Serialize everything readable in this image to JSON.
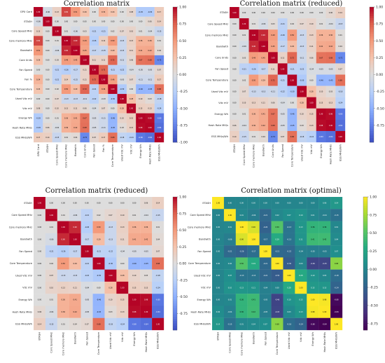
{
  "chart_data": [
    {
      "type": "heatmap",
      "title": "Correlation matrix",
      "colormap": "coolwarm",
      "vmin": -1,
      "vmax": 1,
      "colorbar_ticks": [
        "1.00",
        "0.75",
        "0.50",
        "0.25",
        "0.00",
        "-0.25",
        "-0.50",
        "-0.75",
        "-1.00"
      ],
      "labels": [
        "GPU Card",
        "ETASH",
        "Core Speed MHz",
        "Core memory MHz",
        "Bandwith",
        "Core Units",
        "Fan Speed",
        "Fan %",
        "Core Temperature",
        "Used Vdc mV",
        "Vdc mV",
        "Energy Wh",
        "Hash Rate MH/s",
        "ESS MH/s/Wh"
      ],
      "matrix": [
        [
          1.0,
          -0.06,
          0.13,
          0.82,
          0.51,
          0.26,
          -0.0,
          0.34,
          0.24,
          0.0,
          0.08,
          -0.29,
          -0.29,
          0.17
        ],
        [
          -0.06,
          1.0,
          0.0,
          -0.0,
          -0.0,
          -0.0,
          -0.0,
          -0.0,
          -0.0,
          -0.0,
          0.0,
          0.0,
          0.06,
          0.14
        ],
        [
          0.13,
          0.0,
          1.0,
          0.01,
          -0.06,
          0.03,
          -0.21,
          -0.21,
          0.02,
          0.07,
          0.1,
          0.01,
          -0.04,
          -0.15
        ],
        [
          0.82,
          -0.0,
          0.01,
          1.0,
          0.9,
          0.49,
          -0.26,
          0.14,
          0.5,
          -0.13,
          0.13,
          0.36,
          0.36,
          0.01
        ],
        [
          0.51,
          -0.0,
          -0.06,
          0.9,
          1.0,
          0.45,
          -0.17,
          -0.15,
          0.29,
          -0.13,
          0.11,
          0.41,
          0.42,
          0.04
        ],
        [
          0.26,
          -0.0,
          0.03,
          0.49,
          0.45,
          1.0,
          0.11,
          0.11,
          0.72,
          -0.11,
          0.06,
          0.67,
          0.68,
          -0.72
        ],
        [
          -0.0,
          -0.0,
          -0.21,
          -0.26,
          -0.17,
          0.11,
          1.0,
          0.72,
          -0.21,
          -0.22,
          -0.04,
          -0.05,
          -0.05,
          0.07
        ],
        [
          0.34,
          -0.0,
          -0.21,
          0.14,
          -0.15,
          0.11,
          0.72,
          1.0,
          0.46,
          -0.03,
          0.07,
          -0.11,
          -0.11,
          0.17
        ],
        [
          0.24,
          -0.0,
          0.02,
          0.5,
          0.29,
          0.72,
          -0.21,
          0.46,
          1.0,
          -0.3,
          0.0,
          -0.46,
          -0.45,
          0.68
        ],
        [
          0.0,
          -0.0,
          0.07,
          -0.13,
          -0.13,
          -0.11,
          -0.22,
          -0.03,
          -0.3,
          1.0,
          0.28,
          0.1,
          0.03,
          -0.18
        ],
        [
          0.08,
          0.0,
          0.1,
          0.13,
          0.11,
          0.06,
          -0.04,
          0.07,
          0.0,
          0.28,
          1.0,
          0.15,
          0.13,
          -0.24
        ],
        [
          -0.29,
          0.0,
          0.01,
          0.36,
          0.41,
          0.67,
          -0.05,
          -0.11,
          -0.46,
          0.1,
          0.15,
          1.0,
          0.98,
          -0.8
        ],
        [
          -0.29,
          0.06,
          -0.04,
          0.36,
          0.42,
          0.68,
          -0.05,
          -0.11,
          -0.45,
          0.03,
          0.13,
          0.98,
          1.0,
          -0.84
        ],
        [
          0.17,
          0.14,
          -0.15,
          0.01,
          0.04,
          -0.72,
          0.07,
          0.17,
          0.68,
          -0.18,
          -0.24,
          -0.8,
          -0.84,
          1.0
        ]
      ]
    },
    {
      "type": "heatmap",
      "title": "Correlation matrix (reduced)",
      "colormap": "coolwarm",
      "vmin": -1,
      "vmax": 1,
      "colorbar_ticks": [
        "1.00",
        "0.75",
        "0.50",
        "0.25",
        "0.00",
        "-0.25",
        "-0.50",
        "-0.75"
      ],
      "labels": [
        "ETASH",
        "Core Speed MHz",
        "Core memory MHz",
        "Bandwith",
        "Core Units",
        "Fan Speed",
        "Core Temperature",
        "Used Vdc mV",
        "Vdc mV",
        "Energy Wh",
        "Hash Rate MH/s",
        "ESS MH/s/Wh"
      ],
      "matrix": [
        [
          1.0,
          0.0,
          -0.0,
          -0.0,
          -0.0,
          -0.0,
          -0.0,
          -0.0,
          0.0,
          0.0,
          0.06,
          0.14
        ],
        [
          0.0,
          1.0,
          0.01,
          -0.06,
          0.03,
          -0.21,
          0.02,
          0.07,
          0.1,
          0.01,
          -0.04,
          -0.15
        ],
        [
          -0.0,
          0.01,
          1.0,
          0.9,
          0.49,
          -0.26,
          0.5,
          -0.13,
          0.13,
          0.36,
          0.36,
          0.01
        ],
        [
          -0.0,
          -0.06,
          0.9,
          1.0,
          0.45,
          -0.17,
          0.29,
          -0.13,
          0.11,
          0.41,
          0.42,
          0.04
        ],
        [
          -0.0,
          0.03,
          0.49,
          0.45,
          1.0,
          0.11,
          0.72,
          -0.11,
          0.06,
          0.67,
          0.68,
          -0.72
        ],
        [
          -0.0,
          -0.21,
          -0.26,
          -0.17,
          0.11,
          1.0,
          -0.21,
          -0.22,
          -0.04,
          -0.05,
          -0.05,
          0.07
        ],
        [
          -0.0,
          0.02,
          0.5,
          0.29,
          0.72,
          -0.21,
          1.0,
          -0.3,
          0.0,
          -0.46,
          -0.45,
          0.68
        ],
        [
          -0.0,
          0.07,
          -0.13,
          -0.13,
          -0.11,
          -0.22,
          -0.3,
          1.0,
          0.28,
          0.1,
          0.03,
          -0.18
        ],
        [
          0.0,
          0.1,
          0.13,
          0.11,
          0.06,
          -0.04,
          0.0,
          0.28,
          1.0,
          0.15,
          0.13,
          -0.24
        ],
        [
          0.0,
          0.01,
          0.36,
          0.41,
          0.67,
          -0.05,
          -0.46,
          0.1,
          0.15,
          1.0,
          0.98,
          -0.8
        ],
        [
          0.06,
          -0.04,
          0.36,
          0.42,
          0.68,
          -0.05,
          -0.45,
          0.03,
          0.13,
          0.98,
          1.0,
          -0.84
        ],
        [
          0.14,
          -0.15,
          0.01,
          0.04,
          -0.72,
          0.07,
          0.68,
          -0.18,
          -0.24,
          -0.8,
          -0.84,
          1.0
        ]
      ]
    },
    {
      "type": "heatmap",
      "title": "Correlation matrix (reduced)",
      "colormap": "coolwarm",
      "vmin": -1,
      "vmax": 1,
      "colorbar_ticks": [
        "1.00",
        "0.75",
        "0.50",
        "0.25",
        "0.00",
        "-0.25",
        "-0.50",
        "-0.75"
      ],
      "labels": [
        "ETASH",
        "Core Speed MHz",
        "Core memory MHz",
        "Bandwith",
        "Fan Speed",
        "Core Temperature",
        "Used Vdc mV",
        "Vdc mV",
        "Energy Wh",
        "Hash Rate MH/s",
        "ESS MH/s/Wh"
      ],
      "matrix": [
        [
          1.0,
          0.0,
          -0.0,
          -0.0,
          -0.0,
          -0.0,
          -0.0,
          0.0,
          0.0,
          0.06,
          0.14
        ],
        [
          0.0,
          1.0,
          0.01,
          -0.06,
          -0.21,
          0.02,
          0.07,
          0.1,
          0.01,
          -0.04,
          -0.15
        ],
        [
          -0.0,
          0.01,
          1.0,
          0.9,
          -0.26,
          0.5,
          -0.13,
          0.13,
          0.36,
          0.36,
          0.01
        ],
        [
          -0.0,
          -0.06,
          0.9,
          1.0,
          -0.17,
          0.29,
          -0.13,
          0.11,
          0.41,
          0.42,
          0.04
        ],
        [
          -0.0,
          -0.21,
          -0.26,
          -0.17,
          1.0,
          -0.21,
          -0.22,
          -0.04,
          -0.05,
          -0.05,
          0.07
        ],
        [
          -0.0,
          0.02,
          0.5,
          0.29,
          -0.21,
          1.0,
          -0.3,
          0.0,
          -0.46,
          -0.45,
          0.68
        ],
        [
          -0.0,
          0.07,
          -0.13,
          -0.13,
          -0.22,
          -0.3,
          1.0,
          0.28,
          0.1,
          0.03,
          -0.18
        ],
        [
          0.0,
          0.1,
          0.13,
          0.11,
          -0.04,
          0.0,
          0.28,
          1.0,
          0.15,
          0.13,
          -0.24
        ],
        [
          0.0,
          0.01,
          0.36,
          0.41,
          -0.05,
          -0.46,
          0.1,
          0.15,
          1.0,
          0.98,
          -0.8
        ],
        [
          0.06,
          -0.04,
          0.36,
          0.42,
          -0.05,
          -0.45,
          0.03,
          0.13,
          0.98,
          1.0,
          -0.84
        ],
        [
          0.14,
          -0.15,
          0.01,
          0.04,
          0.07,
          0.68,
          -0.18,
          -0.24,
          -0.8,
          -0.84,
          1.0
        ]
      ]
    },
    {
      "type": "heatmap",
      "title": "Correlation matrix (optimal)",
      "colormap": "viridis",
      "vmin": -0.84,
      "vmax": 1,
      "colorbar_ticks": [
        "1.00",
        "0.75",
        "0.50",
        "0.25",
        "0.00",
        "-0.25",
        "-0.50",
        "-0.75"
      ],
      "labels": [
        "ETASH",
        "Core Speed MHz",
        "Core memory MHz",
        "Bandwith",
        "Fan Speed",
        "Core Temperature",
        "Used Vdc mV",
        "Vdc mV",
        "Energy Wh",
        "Hash Rate MH/s",
        "ESS MH/s/Wh"
      ],
      "matrix": [
        [
          1.0,
          0.0,
          -0.0,
          -0.0,
          -0.0,
          -0.0,
          -0.0,
          0.0,
          0.0,
          0.06,
          0.14
        ],
        [
          0.0,
          1.0,
          0.01,
          -0.06,
          -0.21,
          0.02,
          0.07,
          0.1,
          0.01,
          -0.04,
          -0.15
        ],
        [
          -0.0,
          0.01,
          1.0,
          0.9,
          -0.26,
          0.5,
          -0.13,
          0.13,
          0.36,
          0.36,
          0.01
        ],
        [
          -0.0,
          -0.06,
          0.9,
          1.0,
          -0.17,
          0.29,
          -0.13,
          0.11,
          0.41,
          0.42,
          0.04
        ],
        [
          -0.0,
          -0.21,
          -0.26,
          -0.17,
          1.0,
          -0.21,
          -0.22,
          -0.04,
          -0.05,
          -0.05,
          0.07
        ],
        [
          -0.0,
          0.02,
          0.5,
          0.29,
          -0.21,
          1.0,
          -0.3,
          0.0,
          -0.46,
          -0.45,
          0.68
        ],
        [
          -0.0,
          0.07,
          -0.13,
          -0.13,
          -0.22,
          -0.3,
          1.0,
          0.28,
          0.1,
          0.03,
          -0.18
        ],
        [
          0.0,
          0.1,
          0.13,
          0.11,
          -0.04,
          0.0,
          0.28,
          1.0,
          0.15,
          0.13,
          -0.24
        ],
        [
          0.0,
          0.01,
          0.36,
          0.41,
          -0.05,
          -0.46,
          0.1,
          0.15,
          1.0,
          0.98,
          -0.8
        ],
        [
          0.06,
          -0.04,
          0.36,
          0.42,
          -0.05,
          -0.45,
          0.03,
          0.13,
          0.98,
          1.0,
          -0.84
        ],
        [
          0.14,
          -0.15,
          0.01,
          0.04,
          0.07,
          0.68,
          -0.18,
          -0.24,
          -0.8,
          -0.84,
          1.0
        ]
      ]
    }
  ]
}
